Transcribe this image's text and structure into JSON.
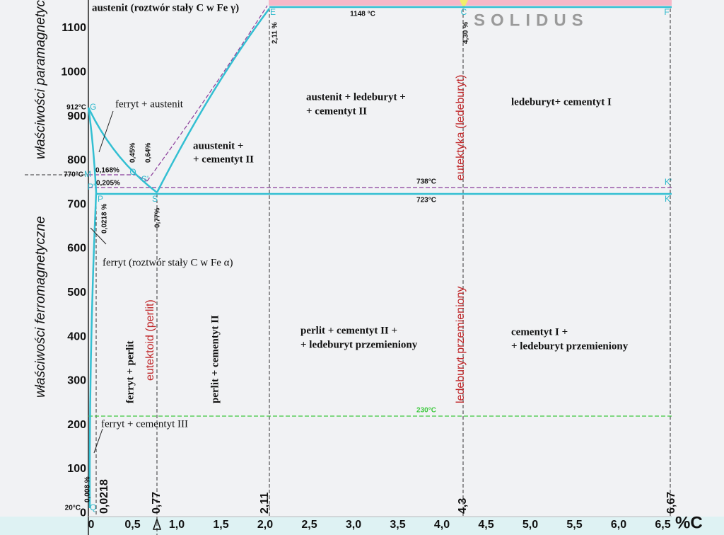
{
  "axes": {
    "y_title_para": "właściwości paramagnetyczne",
    "y_title_ferro": "właściwości ferromagnetyczne",
    "yticks": [
      "1100",
      "1000",
      "900",
      "800",
      "700",
      "600",
      "500",
      "400",
      "300",
      "200",
      "100",
      "0"
    ],
    "xticks": [
      "0",
      "0,5",
      "1,0",
      "1,5",
      "2,0",
      "2,5",
      "3,0",
      "3,5",
      "4,0",
      "4,5",
      "5,0",
      "5,5",
      "6,0",
      "6,5"
    ],
    "x_unit": "%C",
    "composition_marks": [
      "0,0218",
      "0,77",
      "2,11",
      "4,3",
      "6,67"
    ]
  },
  "points": [
    "G",
    "M",
    "O",
    "S'",
    "P'",
    "P",
    "S",
    "Q",
    "E",
    "C",
    "F",
    "K",
    "K'"
  ],
  "temperatures": [
    "912°C",
    "770°C",
    "20°C",
    "1148 °C",
    "738°C",
    "723°C",
    "230°C"
  ],
  "concentrations": [
    "0,168%",
    "0,205%",
    "0,45%",
    "0,64%",
    "2,11 %",
    "4,30 %",
    "0,0218 %",
    "0,77%",
    "0,008 %"
  ],
  "regions": [
    "austenit (roztwór stały C w Fe γ)",
    "ferryt + austenit",
    "auustenit +",
    "+ cementyt II",
    "austenit + ledeburyt +",
    "+ cementyt II",
    "ledeburyt+ cementyt I",
    "ferryt (roztwór stały C w Fe α)",
    "perlit + cementyt II +",
    "+ ledeburyt przemieniony",
    "cementyt I +",
    "+ ledeburyt przemieniony",
    "ferryt + cementyt III",
    "ferryt + perlit",
    "eutektoid (perlit)",
    "perlit + cementyt II",
    "eutektyka (ledeburyt)",
    "ledeburyt  przemieniony"
  ],
  "solidus": "SOLIDUS"
}
